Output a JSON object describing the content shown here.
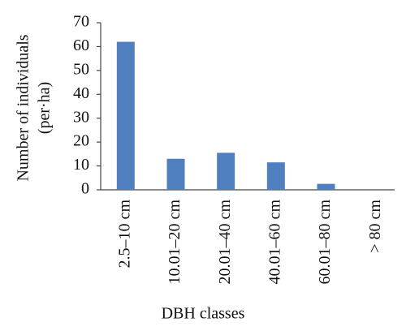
{
  "chart_data": {
    "type": "bar",
    "y_label": [
      "Number of individuals",
      "(per·ha)"
    ],
    "x_label": "DBH classes",
    "categories": [
      "2.5–10 cm",
      "10.01–20 cm",
      "20.01–40 cm",
      "40.01–60 cm",
      "60.01–80 cm",
      "> 80 cm"
    ],
    "values": [
      62,
      13,
      15.5,
      11.5,
      2.5,
      0
    ],
    "color": "#4f7fbf",
    "ylim": [
      0,
      70
    ],
    "yticks": [
      0,
      10,
      20,
      30,
      40,
      50,
      60,
      70
    ],
    "grid": false
  }
}
